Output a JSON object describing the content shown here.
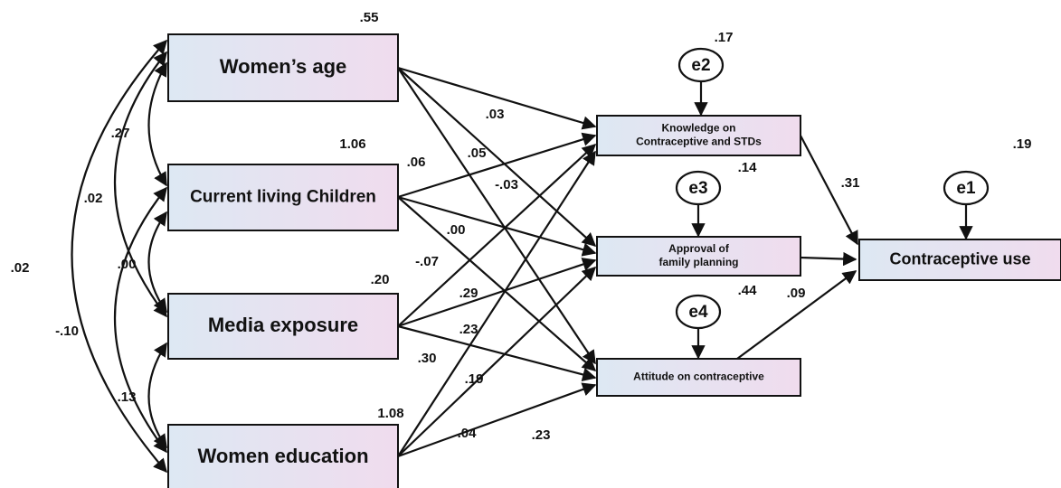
{
  "nodes": [
    {
      "label": [
        "Women’s age"
      ],
      "value": ".55"
    },
    {
      "label": [
        "Current living Children"
      ],
      "value": "1.06"
    },
    {
      "label": [
        "Media exposure"
      ],
      "value": ".20"
    },
    {
      "label": [
        "Women education"
      ],
      "value": "1.08"
    },
    {
      "label": [
        "Knowledge on",
        "Contraceptive and STDs"
      ],
      "value": ".17"
    },
    {
      "label": [
        "Approval of",
        "family planning"
      ],
      "value": ".14"
    },
    {
      "label": [
        "Attitude on contraceptive"
      ],
      "value": ".44"
    },
    {
      "label": [
        "Contraceptive use"
      ],
      "value": ".19"
    }
  ],
  "errors": [
    "e2",
    "e3",
    "e4",
    "e1"
  ],
  "path_coefficients": [
    ".03",
    ".06",
    ".05",
    "-.03",
    ".00",
    "-.07",
    ".29",
    ".23",
    ".30",
    ".19",
    ".04",
    ".23",
    ".31",
    ".09"
  ],
  "correlations": [
    ".27",
    ".02",
    ".00",
    ".02",
    "-.10",
    ".13"
  ]
}
